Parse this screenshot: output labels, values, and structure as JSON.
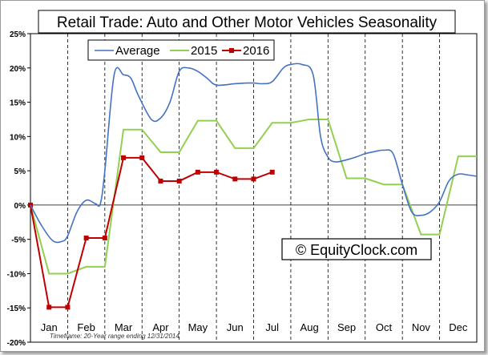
{
  "chart_data": {
    "type": "line",
    "title": "Retail Trade: Auto and Other Motor Vehicles Seasonality",
    "xlabel": "",
    "ylabel": "",
    "ylim": [
      -0.2,
      0.25
    ],
    "ytick_values": [
      0.25,
      0.2,
      0.15,
      0.1,
      0.05,
      0,
      -0.05,
      -0.1,
      -0.15,
      -0.2
    ],
    "ytick_labels": [
      "25%",
      "20%",
      "15%",
      "10%",
      "5%",
      "0%",
      "-5%",
      "-10%",
      "-15%",
      "-20%"
    ],
    "xlim": [
      0,
      12
    ],
    "categories": [
      "Jan",
      "Feb",
      "Mar",
      "Apr",
      "May",
      "Jun",
      "Jul",
      "Aug",
      "Sep",
      "Oct",
      "Nov",
      "Dec"
    ],
    "series": [
      {
        "name": "Average",
        "color": "#4472c4",
        "style": "smooth",
        "x": [
          0,
          0.3,
          0.6,
          0.85,
          1.0,
          1.25,
          1.5,
          1.75,
          1.88,
          2.0,
          2.25,
          2.5,
          2.7,
          2.9,
          3.25,
          3.5,
          3.75,
          4.0,
          4.25,
          4.5,
          4.75,
          5.0,
          5.5,
          5.85,
          6.0,
          6.25,
          6.5,
          6.8,
          7.0,
          7.3,
          7.6,
          7.8,
          8.0,
          8.2,
          8.5,
          8.75,
          9.0,
          9.25,
          9.5,
          9.75,
          10.0,
          10.25,
          10.5,
          10.75,
          11.0,
          11.25,
          11.5,
          11.75,
          12.0
        ],
        "y": [
          0,
          -0.03,
          -0.052,
          -0.053,
          -0.045,
          -0.01,
          0.007,
          0.002,
          0.002,
          0.05,
          0.19,
          0.19,
          0.185,
          0.16,
          0.125,
          0.127,
          0.15,
          0.195,
          0.2,
          0.195,
          0.185,
          0.175,
          0.177,
          0.178,
          0.178,
          0.177,
          0.18,
          0.2,
          0.205,
          0.205,
          0.19,
          0.1,
          0.07,
          0.063,
          0.066,
          0.07,
          0.075,
          0.078,
          0.08,
          0.075,
          0.03,
          -0.01,
          -0.015,
          -0.01,
          0.005,
          0.035,
          0.045,
          0.044,
          0.042
        ]
      },
      {
        "name": "2015",
        "color": "#92d050",
        "style": "linear",
        "x": [
          0,
          0.5,
          1.0,
          1.5,
          2.0,
          2.5,
          3.0,
          3.5,
          4.0,
          4.5,
          5.0,
          5.5,
          6.0,
          6.5,
          7.0,
          7.5,
          8.0,
          8.5,
          9.0,
          9.5,
          10.0,
          10.5,
          11.0,
          11.5,
          12.0
        ],
        "y": [
          0,
          -0.1,
          -0.1,
          -0.09,
          -0.09,
          0.11,
          0.11,
          0.077,
          0.077,
          0.123,
          0.123,
          0.083,
          0.083,
          0.12,
          0.12,
          0.125,
          0.125,
          0.039,
          0.039,
          0.03,
          0.03,
          -0.043,
          -0.043,
          0.071,
          0.071
        ]
      },
      {
        "name": "2016",
        "color": "#c00000",
        "style": "linear-markers",
        "x": [
          0,
          0.5,
          1.0,
          1.5,
          2.0,
          2.5,
          3.0,
          3.5,
          4.0,
          4.5,
          5.0,
          5.5,
          6.0,
          6.5
        ],
        "y": [
          0,
          -0.149,
          -0.149,
          -0.048,
          -0.048,
          0.069,
          0.069,
          0.035,
          0.035,
          0.048,
          0.048,
          0.038,
          0.038,
          0.048
        ]
      }
    ],
    "legend_placement": "top-left",
    "grid": "dashed vertical lines at month boundaries"
  },
  "watermark": "© EquityClock.com",
  "footnote": "Timeframe: 20-Year range ending 12/31/2014"
}
